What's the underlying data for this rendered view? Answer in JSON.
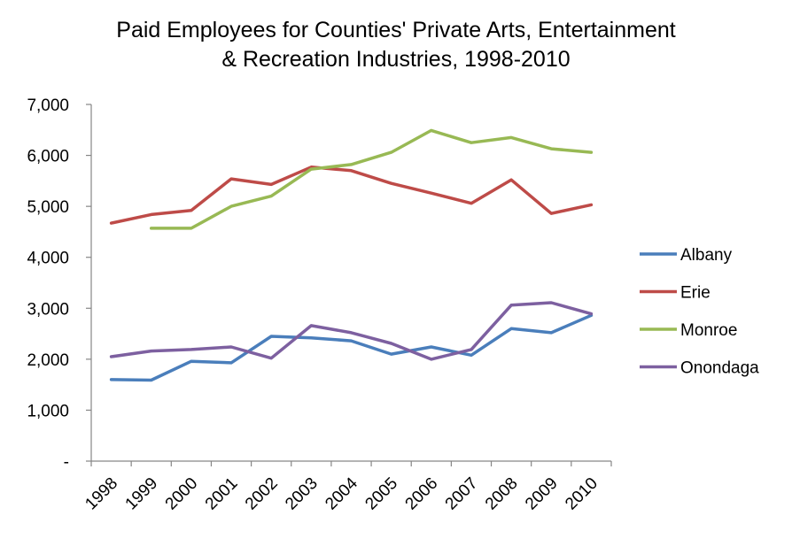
{
  "chart_data": {
    "type": "line",
    "title_lines": [
      "Paid Employees for Counties' Private Arts, Entertainment",
      "& Recreation Industries, 1998-2010"
    ],
    "categories": [
      "1998",
      "1999",
      "2000",
      "2001",
      "2002",
      "2003",
      "2004",
      "2005",
      "2006",
      "2007",
      "2008",
      "2009",
      "2010"
    ],
    "ylim": [
      0,
      7000
    ],
    "y_ticks": [
      0,
      1000,
      2000,
      3000,
      4000,
      5000,
      6000,
      7000
    ],
    "y_tick_labels": [
      "-",
      "1,000",
      "2,000",
      "3,000",
      "4,000",
      "5,000",
      "6,000",
      "7,000"
    ],
    "grid": false,
    "legend_position": "right",
    "series": [
      {
        "name": "Albany",
        "color": "#4a7ebb",
        "values": [
          1600,
          1590,
          1960,
          1930,
          2450,
          2420,
          2360,
          2100,
          2240,
          2080,
          2600,
          2520,
          2860
        ]
      },
      {
        "name": "Erie",
        "color": "#be4b48",
        "values": [
          4670,
          4840,
          4920,
          5540,
          5430,
          5770,
          5700,
          5450,
          5260,
          5060,
          5520,
          4860,
          5030
        ]
      },
      {
        "name": "Monroe",
        "color": "#98b954",
        "values": [
          null,
          4570,
          4570,
          5000,
          5200,
          5730,
          5820,
          6060,
          6490,
          6250,
          6350,
          6130,
          6060
        ]
      },
      {
        "name": "Onondaga",
        "color": "#7d60a0",
        "values": [
          2050,
          2160,
          2190,
          2240,
          2020,
          2660,
          2520,
          2310,
          2000,
          2190,
          3060,
          3110,
          2890
        ]
      }
    ]
  }
}
